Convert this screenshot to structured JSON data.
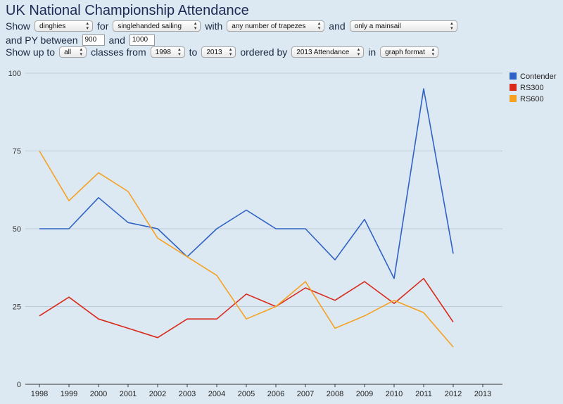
{
  "page": {
    "title": "UK National Championship Attendance"
  },
  "controls": {
    "row1": {
      "show": "Show",
      "type_value": "dinghies",
      "for": "for",
      "use_value": "singlehanded sailing",
      "with": "with",
      "trapeze_value": "any number of trapezes",
      "and": "and",
      "rig_value": "only a mainsail"
    },
    "row2": {
      "label": "and PY between",
      "min": "900",
      "and": "and",
      "max": "1000"
    },
    "row3": {
      "show_up_to": "Show up to",
      "count_value": "all",
      "classes_from": "classes from",
      "from_value": "1998",
      "to": "to",
      "to_value": "2013",
      "ordered_by": "ordered by",
      "order_value": "2013 Attendance",
      "in": "in",
      "format_value": "graph format"
    }
  },
  "colors": {
    "Contender": "#2f62c4",
    "RS300": "#d8291a",
    "RS600": "#f5a122",
    "grid": "#b9cad8",
    "axis": "#333333"
  },
  "chart_data": {
    "type": "line",
    "title": "",
    "xlabel": "",
    "ylabel": "",
    "categories": [
      "1998",
      "1999",
      "2000",
      "2001",
      "2002",
      "2003",
      "2004",
      "2005",
      "2006",
      "2007",
      "2008",
      "2009",
      "2010",
      "2011",
      "2012",
      "2013"
    ],
    "ylim": [
      0,
      100
    ],
    "yticks": [
      0,
      25,
      50,
      75,
      100
    ],
    "legend_position": "right",
    "series": [
      {
        "name": "Contender",
        "values": [
          50,
          50,
          60,
          52,
          50,
          41,
          50,
          56,
          50,
          50,
          40,
          53,
          34,
          95,
          42,
          null
        ]
      },
      {
        "name": "RS300",
        "values": [
          22,
          28,
          21,
          18,
          15,
          21,
          21,
          29,
          25,
          31,
          27,
          33,
          26,
          34,
          20,
          null
        ]
      },
      {
        "name": "RS600",
        "values": [
          75,
          59,
          68,
          62,
          47,
          41,
          35,
          21,
          25,
          33,
          18,
          22,
          27,
          23,
          12,
          null
        ]
      }
    ]
  }
}
